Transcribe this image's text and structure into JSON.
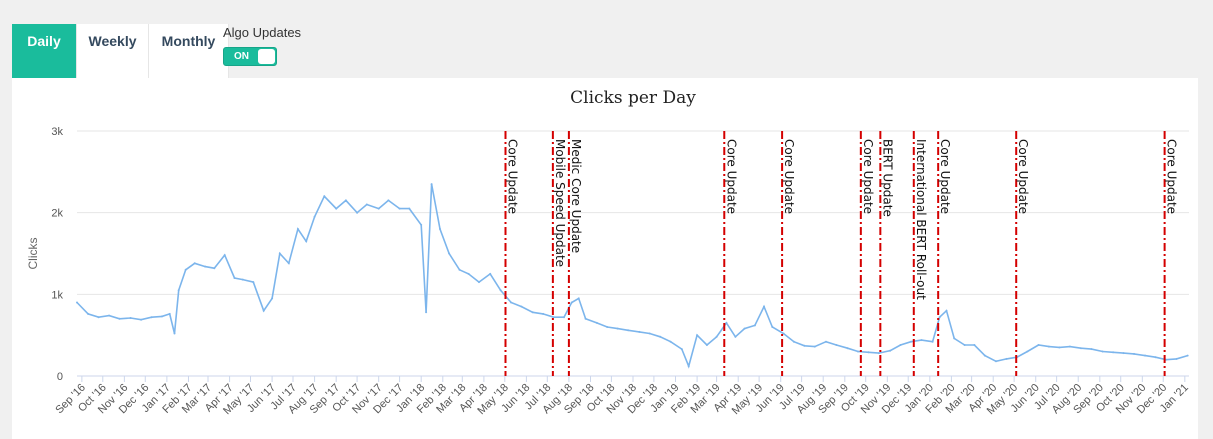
{
  "tabs": [
    {
      "label": "Daily",
      "active": true
    },
    {
      "label": "Weekly",
      "active": false
    },
    {
      "label": "Monthly",
      "active": false
    }
  ],
  "algo": {
    "label": "Algo Updates",
    "toggle_label": "ON",
    "toggle_on": true
  },
  "colors": {
    "accent": "#1abc9c",
    "line": "#7cb5ec",
    "update_line": "#d40000"
  },
  "chart_data": {
    "type": "line",
    "title": "Clicks per Day",
    "ylabel": "Clicks",
    "ylim": [
      0,
      3000
    ],
    "yticks": [
      {
        "v": 0,
        "label": "0"
      },
      {
        "v": 1000,
        "label": "1k"
      },
      {
        "v": 2000,
        "label": "2k"
      },
      {
        "v": 3000,
        "label": "3k"
      }
    ],
    "xlim": [
      "2016-08-25",
      "2021-01-07"
    ],
    "xticks": [
      "Sep '16",
      "Oct '16",
      "Nov '16",
      "Dec '16",
      "Jan '17",
      "Feb '17",
      "Mar '17",
      "Apr '17",
      "May '17",
      "Jun '17",
      "Jul '17",
      "Aug '17",
      "Sep '17",
      "Oct '17",
      "Nov '17",
      "Dec '17",
      "Jan '18",
      "Feb '18",
      "Mar '18",
      "Apr '18",
      "May '18",
      "Jun '18",
      "Jul '18",
      "Aug '18",
      "Sep '18",
      "Oct '18",
      "Nov '18",
      "Dec '18",
      "Jan '19",
      "Feb '19",
      "Mar '19",
      "Apr '19",
      "May '19",
      "Jun '19",
      "Jul '19",
      "Aug '19",
      "Sep '19",
      "Oct '19",
      "Nov '19",
      "Dec '19",
      "Jan '20",
      "Feb '20",
      "Mar '20",
      "Apr '20",
      "May '20",
      "Jun '20",
      "Jul '20",
      "Aug '20",
      "Sep '20",
      "Oct '20",
      "Nov '20",
      "Dec '20",
      "Jan '21"
    ],
    "grid": true,
    "series": [
      {
        "points": [
          [
            "2016-08-25",
            900
          ],
          [
            "2016-09-10",
            760
          ],
          [
            "2016-09-25",
            720
          ],
          [
            "2016-10-10",
            740
          ],
          [
            "2016-10-25",
            700
          ],
          [
            "2016-11-10",
            710
          ],
          [
            "2016-11-25",
            690
          ],
          [
            "2016-12-10",
            720
          ],
          [
            "2016-12-25",
            730
          ],
          [
            "2017-01-05",
            760
          ],
          [
            "2017-01-12",
            520
          ],
          [
            "2017-01-18",
            1050
          ],
          [
            "2017-01-28",
            1300
          ],
          [
            "2017-02-10",
            1380
          ],
          [
            "2017-02-25",
            1340
          ],
          [
            "2017-03-10",
            1320
          ],
          [
            "2017-03-25",
            1480
          ],
          [
            "2017-04-08",
            1200
          ],
          [
            "2017-04-20",
            1180
          ],
          [
            "2017-05-05",
            1150
          ],
          [
            "2017-05-20",
            800
          ],
          [
            "2017-06-01",
            950
          ],
          [
            "2017-06-12",
            1500
          ],
          [
            "2017-06-25",
            1380
          ],
          [
            "2017-07-08",
            1800
          ],
          [
            "2017-07-20",
            1650
          ],
          [
            "2017-08-01",
            1950
          ],
          [
            "2017-08-15",
            2200
          ],
          [
            "2017-09-01",
            2050
          ],
          [
            "2017-09-15",
            2150
          ],
          [
            "2017-10-01",
            2000
          ],
          [
            "2017-10-15",
            2100
          ],
          [
            "2017-11-01",
            2050
          ],
          [
            "2017-11-15",
            2150
          ],
          [
            "2017-12-01",
            2050
          ],
          [
            "2017-12-15",
            2050
          ],
          [
            "2018-01-01",
            1850
          ],
          [
            "2018-01-08",
            780
          ],
          [
            "2018-01-16",
            2350
          ],
          [
            "2018-01-28",
            1800
          ],
          [
            "2018-02-10",
            1500
          ],
          [
            "2018-02-25",
            1300
          ],
          [
            "2018-03-10",
            1250
          ],
          [
            "2018-03-25",
            1150
          ],
          [
            "2018-04-10",
            1250
          ],
          [
            "2018-04-25",
            1050
          ],
          [
            "2018-05-10",
            900
          ],
          [
            "2018-05-25",
            850
          ],
          [
            "2018-06-10",
            780
          ],
          [
            "2018-06-25",
            760
          ],
          [
            "2018-07-10",
            720
          ],
          [
            "2018-07-25",
            720
          ],
          [
            "2018-08-05",
            900
          ],
          [
            "2018-08-15",
            950
          ],
          [
            "2018-08-25",
            700
          ],
          [
            "2018-09-10",
            650
          ],
          [
            "2018-09-25",
            600
          ],
          [
            "2018-10-10",
            580
          ],
          [
            "2018-10-25",
            560
          ],
          [
            "2018-11-10",
            540
          ],
          [
            "2018-11-25",
            520
          ],
          [
            "2018-12-10",
            480
          ],
          [
            "2018-12-25",
            420
          ],
          [
            "2019-01-10",
            330
          ],
          [
            "2019-01-20",
            120
          ],
          [
            "2019-02-01",
            500
          ],
          [
            "2019-02-15",
            380
          ],
          [
            "2019-03-01",
            480
          ],
          [
            "2019-03-15",
            650
          ],
          [
            "2019-03-28",
            480
          ],
          [
            "2019-04-10",
            580
          ],
          [
            "2019-04-25",
            620
          ],
          [
            "2019-05-08",
            850
          ],
          [
            "2019-05-20",
            600
          ],
          [
            "2019-06-05",
            520
          ],
          [
            "2019-06-20",
            420
          ],
          [
            "2019-07-05",
            370
          ],
          [
            "2019-07-20",
            360
          ],
          [
            "2019-08-05",
            420
          ],
          [
            "2019-08-20",
            380
          ],
          [
            "2019-09-05",
            340
          ],
          [
            "2019-09-20",
            300
          ],
          [
            "2019-10-05",
            290
          ],
          [
            "2019-10-20",
            280
          ],
          [
            "2019-11-05",
            310
          ],
          [
            "2019-11-20",
            380
          ],
          [
            "2019-12-05",
            420
          ],
          [
            "2019-12-20",
            440
          ],
          [
            "2020-01-05",
            420
          ],
          [
            "2020-01-15",
            720
          ],
          [
            "2020-01-25",
            800
          ],
          [
            "2020-02-05",
            460
          ],
          [
            "2020-02-20",
            380
          ],
          [
            "2020-03-05",
            380
          ],
          [
            "2020-03-20",
            250
          ],
          [
            "2020-04-05",
            180
          ],
          [
            "2020-04-20",
            210
          ],
          [
            "2020-05-05",
            230
          ],
          [
            "2020-05-20",
            300
          ],
          [
            "2020-06-05",
            380
          ],
          [
            "2020-06-20",
            360
          ],
          [
            "2020-07-05",
            350
          ],
          [
            "2020-07-20",
            360
          ],
          [
            "2020-08-05",
            340
          ],
          [
            "2020-08-20",
            330
          ],
          [
            "2020-09-05",
            300
          ],
          [
            "2020-09-20",
            290
          ],
          [
            "2020-10-05",
            280
          ],
          [
            "2020-10-20",
            270
          ],
          [
            "2020-11-05",
            250
          ],
          [
            "2020-11-20",
            230
          ],
          [
            "2020-12-05",
            200
          ],
          [
            "2020-12-20",
            210
          ],
          [
            "2021-01-05",
            250
          ]
        ]
      }
    ],
    "updates": [
      {
        "date": "2018-05-02",
        "label": "Core Update"
      },
      {
        "date": "2018-07-09",
        "label": "Mobile Speed Update"
      },
      {
        "date": "2018-08-01",
        "label": "Medic Core Update"
      },
      {
        "date": "2019-03-12",
        "label": "Core Update"
      },
      {
        "date": "2019-06-03",
        "label": "Core Update"
      },
      {
        "date": "2019-09-24",
        "label": "Core Update"
      },
      {
        "date": "2019-10-22",
        "label": "BERT Update"
      },
      {
        "date": "2019-12-09",
        "label": "International BERT Roll-out"
      },
      {
        "date": "2020-01-13",
        "label": "Core Update"
      },
      {
        "date": "2020-05-04",
        "label": "Core Update"
      },
      {
        "date": "2020-12-03",
        "label": "Core Update"
      }
    ]
  }
}
